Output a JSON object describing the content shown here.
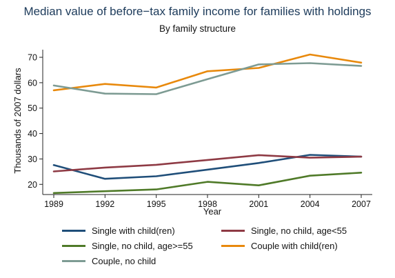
{
  "chart_data": {
    "type": "line",
    "title": "Median value of before−tax family income for families with holdings",
    "subtitle": "By family structure",
    "xlabel": "Year",
    "ylabel": "Thousands of 2007 dollars",
    "x": [
      1989,
      1992,
      1995,
      1998,
      2001,
      2004,
      2007
    ],
    "x_tick_labels": [
      "1989",
      "1992",
      "1995",
      "1998",
      "2001",
      "2004",
      "2007"
    ],
    "y_ticks": [
      20,
      30,
      40,
      50,
      60,
      70
    ],
    "ylim": [
      16,
      73
    ],
    "legend_position": "bottom",
    "grid": false,
    "series": [
      {
        "name": "Single with child(ren)",
        "color": "#1f4e79",
        "values": [
          27.6,
          22.2,
          23.2,
          25.8,
          28.4,
          31.6,
          30.9
        ]
      },
      {
        "name": "Single, no child, age<55",
        "color": "#8e3a44",
        "values": [
          25.1,
          26.6,
          27.7,
          29.6,
          31.5,
          30.5,
          30.9
        ]
      },
      {
        "name": "Single, no child, age>=55",
        "color": "#4f7a28",
        "values": [
          16.6,
          17.3,
          18.0,
          21.0,
          19.6,
          23.4,
          24.6
        ]
      },
      {
        "name": "Couple with child(ren)",
        "color": "#e8890c",
        "values": [
          57.0,
          59.5,
          58.1,
          64.5,
          65.8,
          71.1,
          67.9
        ]
      },
      {
        "name": "Couple, no child",
        "color": "#7d9b93",
        "values": [
          58.9,
          55.7,
          55.5,
          61.4,
          67.2,
          67.7,
          66.6
        ]
      }
    ]
  }
}
